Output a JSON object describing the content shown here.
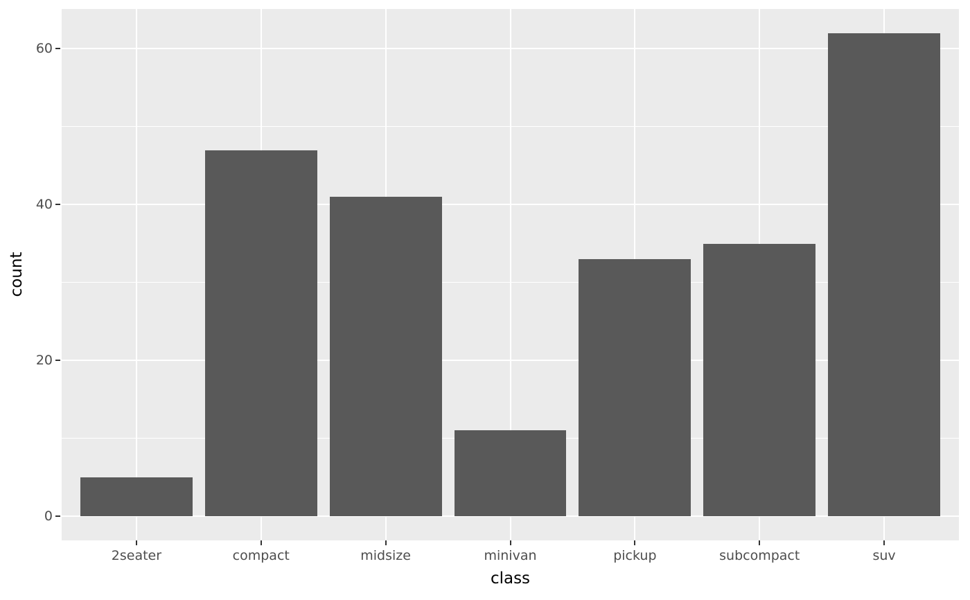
{
  "chart_data": {
    "type": "bar",
    "title": "",
    "categories": [
      "2seater",
      "compact",
      "midsize",
      "minivan",
      "pickup",
      "subcompact",
      "suv"
    ],
    "values": [
      5,
      47,
      41,
      11,
      33,
      35,
      62
    ],
    "xlabel": "class",
    "ylabel": "count",
    "yticks": [
      0,
      20,
      40,
      60
    ],
    "yticks_minor": [
      10,
      30,
      50
    ],
    "ylim": [
      -3.1,
      65.1
    ],
    "x_units_range": [
      0.4,
      7.6
    ],
    "bar_width_units": 0.9,
    "grid": true,
    "legend_position": "none"
  },
  "style": {
    "bar_fill": "#595959",
    "panel_background": "#EBEBEB",
    "grid_major_color": "#FFFFFF",
    "grid_minor_color": "#FFFFFF",
    "tick_label_color": "#4D4D4D",
    "axis_title_color": "#000000",
    "tick_mark_color": "#333333",
    "figure_background": "#FFFFFF"
  }
}
